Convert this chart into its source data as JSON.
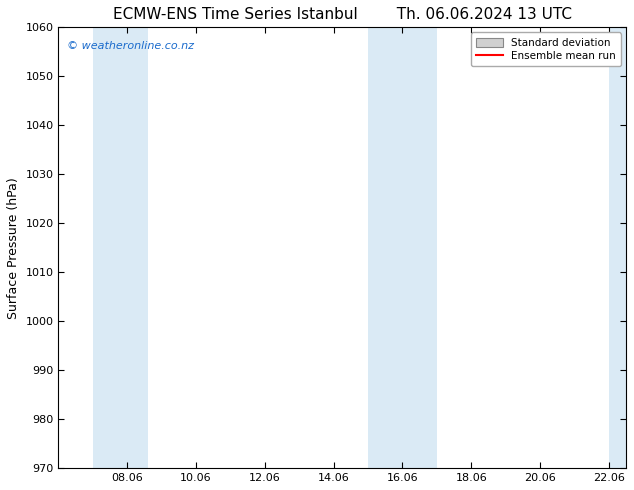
{
  "title_left": "ECMW-ENS Time Series Istanbul",
  "title_right": "Th. 06.06.2024 13 UTC",
  "ylabel": "Surface Pressure (hPa)",
  "ylim": [
    970,
    1060
  ],
  "yticks": [
    970,
    980,
    990,
    1000,
    1010,
    1020,
    1030,
    1040,
    1050,
    1060
  ],
  "xtick_labels": [
    "08.06",
    "10.06",
    "12.06",
    "14.06",
    "16.06",
    "18.06",
    "20.06",
    "22.06"
  ],
  "xtick_positions": [
    2,
    4,
    6,
    8,
    10,
    12,
    14,
    16
  ],
  "xlim": [
    0,
    16.5
  ],
  "shaded_bands": [
    {
      "x_start": 1.0,
      "x_end": 1.5
    },
    {
      "x_start": 2.0,
      "x_end": 2.5
    },
    {
      "x_start": 8.5,
      "x_end": 9.0
    },
    {
      "x_start": 9.5,
      "x_end": 10.0
    },
    {
      "x_start": 16.0,
      "x_end": 16.5
    }
  ],
  "shade_color": "#daeaf5",
  "background_color": "#ffffff",
  "watermark_text": "© weatheronline.co.nz",
  "watermark_color": "#1a6bcc",
  "legend_std_facecolor": "#d0d0d0",
  "legend_std_edgecolor": "#888888",
  "legend_mean_color": "#ff0000",
  "title_fontsize": 11,
  "ylabel_fontsize": 9,
  "tick_fontsize": 8,
  "watermark_fontsize": 8
}
